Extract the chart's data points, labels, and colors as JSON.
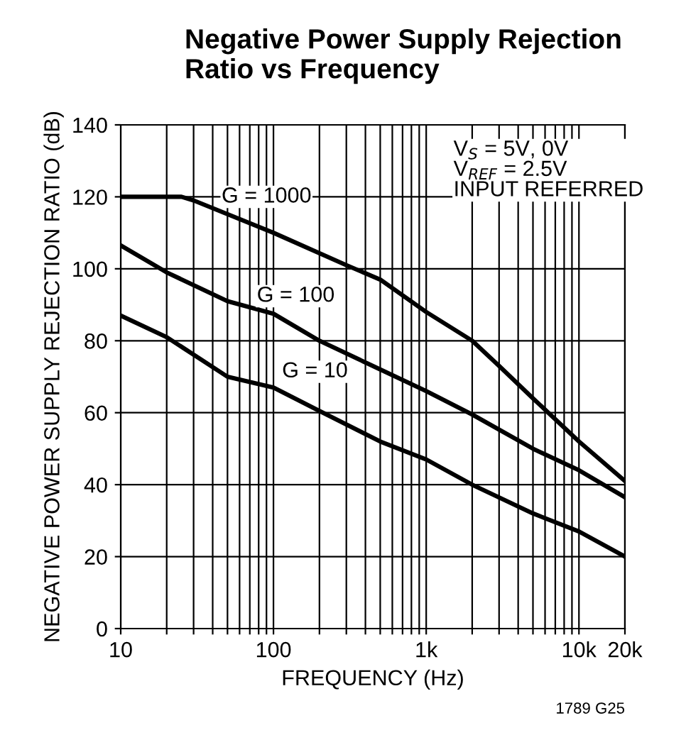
{
  "chart_data": {
    "type": "line",
    "title": "Negative Power Supply Rejection\nRatio vs Frequency",
    "xlabel": "FREQUENCY (Hz)",
    "ylabel": "NEGATIVE POWER SUPPLY REJECTION RATIO (dB)",
    "log": "x",
    "grid": true,
    "marker": "none",
    "line_style": "solid",
    "xlim": [
      10,
      20000
    ],
    "ylim": [
      0,
      140
    ],
    "yticks": [
      0,
      20,
      40,
      60,
      80,
      100,
      120,
      140
    ],
    "xticks": [
      {
        "value": 10,
        "label": "10"
      },
      {
        "value": 20,
        "label": null
      },
      {
        "value": 30,
        "label": null
      },
      {
        "value": 40,
        "label": null
      },
      {
        "value": 50,
        "label": null
      },
      {
        "value": 60,
        "label": null
      },
      {
        "value": 70,
        "label": null
      },
      {
        "value": 80,
        "label": null
      },
      {
        "value": 90,
        "label": null
      },
      {
        "value": 100,
        "label": "100"
      },
      {
        "value": 200,
        "label": null
      },
      {
        "value": 300,
        "label": null
      },
      {
        "value": 400,
        "label": null
      },
      {
        "value": 500,
        "label": null
      },
      {
        "value": 600,
        "label": null
      },
      {
        "value": 700,
        "label": null
      },
      {
        "value": 800,
        "label": null
      },
      {
        "value": 900,
        "label": null
      },
      {
        "value": 1000,
        "label": "1k"
      },
      {
        "value": 2000,
        "label": null
      },
      {
        "value": 3000,
        "label": null
      },
      {
        "value": 4000,
        "label": null
      },
      {
        "value": 5000,
        "label": null
      },
      {
        "value": 6000,
        "label": null
      },
      {
        "value": 7000,
        "label": null
      },
      {
        "value": 8000,
        "label": null
      },
      {
        "value": 9000,
        "label": null
      },
      {
        "value": 10000,
        "label": "10k"
      },
      {
        "value": 20000,
        "label": "20k"
      }
    ],
    "series": [
      {
        "color": "#000000",
        "x": [
          10,
          25,
          30,
          100,
          300,
          500,
          1000,
          2000,
          3000,
          5000,
          10000,
          20000
        ],
        "values": [
          120,
          120,
          119,
          110,
          101,
          97,
          88,
          80,
          73,
          64,
          52,
          41
        ]
      },
      {
        "color": "#000000",
        "x": [
          10,
          20,
          50,
          100,
          200,
          1000,
          2000,
          5000,
          10000,
          20000
        ],
        "values": [
          106.5,
          99,
          91,
          87.5,
          80,
          66,
          59.5,
          50,
          44,
          36.5
        ]
      },
      {
        "color": "#000000",
        "x": [
          10,
          20,
          50,
          100,
          200,
          500,
          1000,
          2000,
          5000,
          10000,
          20000
        ],
        "values": [
          87,
          81,
          70,
          67,
          60.5,
          52,
          47,
          40,
          32,
          27,
          20
        ]
      }
    ],
    "annotations": [
      "G = 1000",
      "G = 100",
      "G = 10",
      "V$_{S}$ = 5V, 0V\nV$_{REF}$ = 2.5V\nINPUT REFERRED",
      "1789 G25"
    ]
  }
}
